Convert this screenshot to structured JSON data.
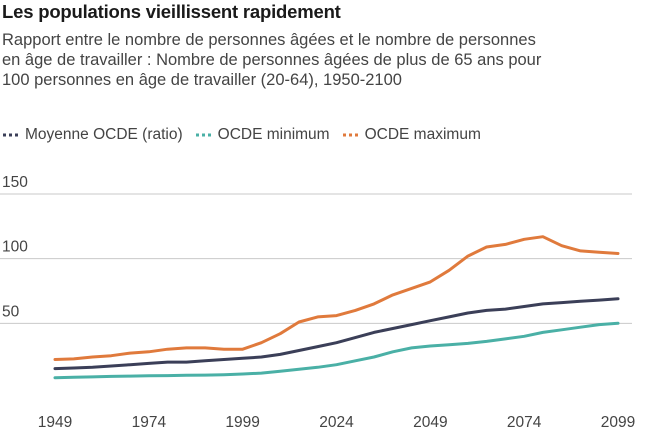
{
  "chart_data": {
    "type": "line",
    "title": "Les populations vieillissent rapidement",
    "subtitle_lines": [
      "Rapport entre le nombre de personnes âgées et le nombre de personnes",
      "en âge de travailler : Nombre de personnes âgées de plus de 65 ans pour",
      "100 personnes en âge de travailler (20-64), 1950-2100"
    ],
    "xlabel": "",
    "ylabel": "",
    "x_ticks": [
      1949,
      1974,
      1999,
      2024,
      2049,
      2074,
      2099
    ],
    "y_ticks": [
      50,
      100,
      150
    ],
    "ylim": [
      0,
      150
    ],
    "xlim": [
      1949,
      2099
    ],
    "grid": "horizontal",
    "legend_position": "top-left",
    "x": [
      1949,
      1954,
      1959,
      1964,
      1969,
      1974,
      1979,
      1984,
      1989,
      1994,
      1999,
      2004,
      2009,
      2014,
      2019,
      2024,
      2029,
      2034,
      2039,
      2044,
      2049,
      2054,
      2059,
      2064,
      2069,
      2074,
      2079,
      2084,
      2089,
      2094,
      2099
    ],
    "series": [
      {
        "name": "Moyenne OCDE (ratio)",
        "color": "#3b3f58",
        "values": [
          15,
          15.5,
          16,
          17,
          18,
          19,
          20,
          20,
          21,
          22,
          23,
          24,
          26,
          29,
          32,
          35,
          39,
          43,
          46,
          49,
          52,
          55,
          58,
          60,
          61,
          63,
          65,
          66,
          67,
          68,
          69
        ]
      },
      {
        "name": "OCDE minimum",
        "color": "#4ab0a6",
        "values": [
          8,
          8.3,
          8.6,
          9,
          9.2,
          9.4,
          9.6,
          9.8,
          10,
          10.3,
          10.8,
          11.5,
          13,
          14.5,
          16,
          18,
          21,
          24,
          28,
          31,
          32.5,
          33.5,
          34.5,
          36,
          38,
          40,
          43,
          45,
          47,
          49,
          50
        ]
      },
      {
        "name": "OCDE maximum",
        "color": "#e07a3c",
        "values": [
          22,
          22.5,
          24,
          25,
          27,
          28,
          30,
          31,
          31,
          30,
          30,
          35,
          42,
          51,
          55,
          56,
          60,
          65,
          72,
          77,
          82,
          91,
          102,
          109,
          111,
          115,
          117,
          110,
          106,
          105,
          104
        ]
      }
    ]
  }
}
